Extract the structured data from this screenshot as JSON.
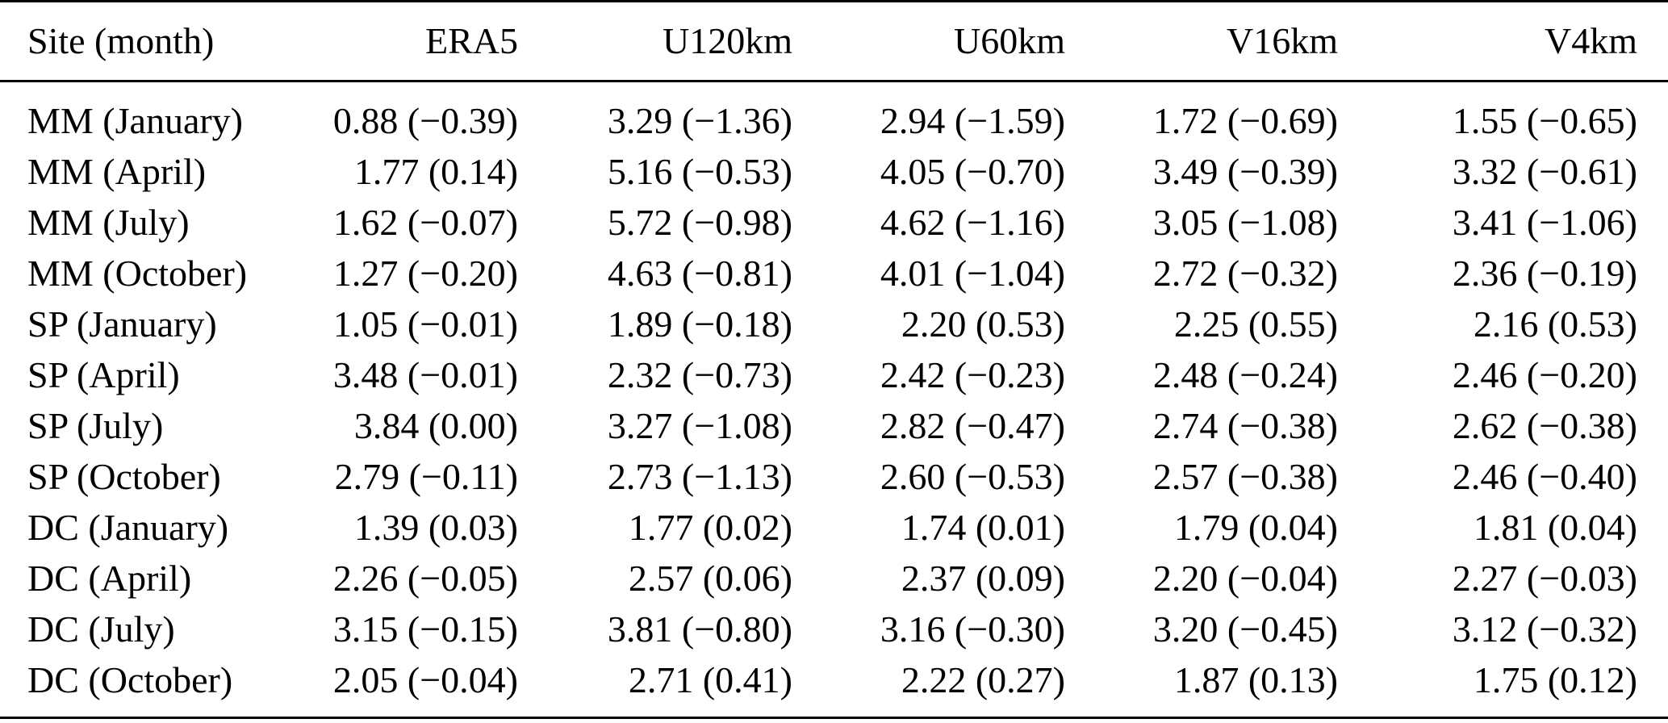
{
  "table": {
    "headers": [
      "Site (month)",
      "ERA5",
      "U120km",
      "U60km",
      "V16km",
      "V4km"
    ],
    "rows": [
      [
        "MM (January)",
        "0.88 (−0.39)",
        "3.29 (−1.36)",
        "2.94 (−1.59)",
        "1.72 (−0.69)",
        "1.55 (−0.65)"
      ],
      [
        "MM (April)",
        "1.77 (0.14)",
        "5.16 (−0.53)",
        "4.05 (−0.70)",
        "3.49 (−0.39)",
        "3.32 (−0.61)"
      ],
      [
        "MM (July)",
        "1.62 (−0.07)",
        "5.72 (−0.98)",
        "4.62 (−1.16)",
        "3.05 (−1.08)",
        "3.41 (−1.06)"
      ],
      [
        "MM (October)",
        "1.27 (−0.20)",
        "4.63 (−0.81)",
        "4.01 (−1.04)",
        "2.72 (−0.32)",
        "2.36 (−0.19)"
      ],
      [
        "SP (January)",
        "1.05 (−0.01)",
        "1.89 (−0.18)",
        "2.20 (0.53)",
        "2.25 (0.55)",
        "2.16 (0.53)"
      ],
      [
        "SP (April)",
        "3.48 (−0.01)",
        "2.32 (−0.73)",
        "2.42 (−0.23)",
        "2.48 (−0.24)",
        "2.46 (−0.20)"
      ],
      [
        "SP (July)",
        "3.84 (0.00)",
        "3.27 (−1.08)",
        "2.82 (−0.47)",
        "2.74 (−0.38)",
        "2.62 (−0.38)"
      ],
      [
        "SP (October)",
        "2.79 (−0.11)",
        "2.73 (−1.13)",
        "2.60 (−0.53)",
        "2.57 (−0.38)",
        "2.46 (−0.40)"
      ],
      [
        "DC (January)",
        "1.39 (0.03)",
        "1.77 (0.02)",
        "1.74 (0.01)",
        "1.79 (0.04)",
        "1.81 (0.04)"
      ],
      [
        "DC (April)",
        "2.26 (−0.05)",
        "2.57 (0.06)",
        "2.37 (0.09)",
        "2.20 (−0.04)",
        "2.27 (−0.03)"
      ],
      [
        "DC (July)",
        "3.15 (−0.15)",
        "3.81 (−0.80)",
        "3.16 (−0.30)",
        "3.20 (−0.45)",
        "3.12 (−0.32)"
      ],
      [
        "DC (October)",
        "2.05 (−0.04)",
        "2.71 (0.41)",
        "2.22 (0.27)",
        "1.87 (0.13)",
        "1.75 (0.12)"
      ]
    ]
  }
}
